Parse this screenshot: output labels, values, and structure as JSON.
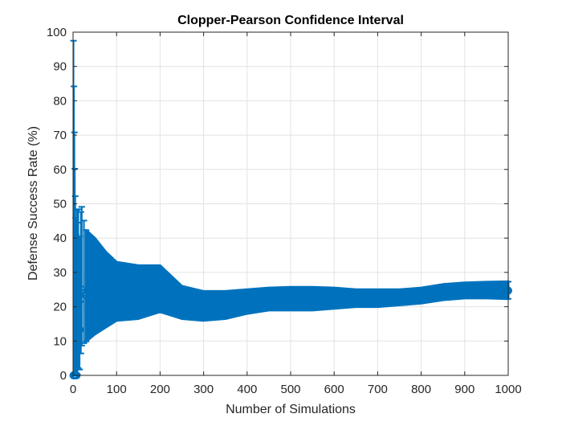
{
  "chart_data": {
    "type": "errorbar",
    "title": "Clopper-Pearson Confidence Interval",
    "xlabel": "Number of Simulations",
    "ylabel": "Defense Success Rate (%)",
    "xlim": [
      0,
      1000
    ],
    "ylim": [
      0,
      100
    ],
    "xticks": [
      0,
      100,
      200,
      300,
      400,
      500,
      600,
      700,
      800,
      900,
      1000
    ],
    "yticks": [
      0,
      10,
      20,
      30,
      40,
      50,
      60,
      70,
      80,
      90,
      100
    ],
    "grid": true,
    "box": true,
    "series_color": "#0072BD",
    "early_points": [
      {
        "n": 1,
        "rate": 0,
        "lower": 0,
        "upper": 97.5
      },
      {
        "n": 2,
        "rate": 0,
        "lower": 0,
        "upper": 84.2
      },
      {
        "n": 3,
        "rate": 0,
        "lower": 0,
        "upper": 70.8
      },
      {
        "n": 4,
        "rate": 0,
        "lower": 0,
        "upper": 60.2
      },
      {
        "n": 5,
        "rate": 0,
        "lower": 0,
        "upper": 52.2
      },
      {
        "n": 6,
        "rate": 0,
        "lower": 0,
        "upper": 45.9
      },
      {
        "n": 7,
        "rate": 0,
        "lower": 0,
        "upper": 41.0
      },
      {
        "n": 8,
        "rate": 0,
        "lower": 0,
        "upper": 36.9
      },
      {
        "n": 9,
        "rate": 11.1,
        "lower": 0.3,
        "upper": 48.2
      },
      {
        "n": 10,
        "rate": 10.0,
        "lower": 0.3,
        "upper": 44.5
      },
      {
        "n": 12,
        "rate": 16.7,
        "lower": 2.1,
        "upper": 48.4
      },
      {
        "n": 15,
        "rate": 13.3,
        "lower": 1.7,
        "upper": 40.5
      },
      {
        "n": 18,
        "rate": 22.2,
        "lower": 6.4,
        "upper": 47.6
      },
      {
        "n": 20,
        "rate": 25.0,
        "lower": 8.7,
        "upper": 49.1
      },
      {
        "n": 25,
        "rate": 24.0,
        "lower": 9.4,
        "upper": 45.1
      },
      {
        "n": 30,
        "rate": 23.3,
        "lower": 9.9,
        "upper": 42.3
      }
    ],
    "band": {
      "x": [
        30,
        50,
        75,
        100,
        150,
        200,
        250,
        300,
        350,
        400,
        450,
        500,
        550,
        600,
        650,
        700,
        750,
        800,
        850,
        900,
        950,
        1000
      ],
      "rate": [
        23.3,
        24,
        23,
        23,
        23,
        24.5,
        21.5,
        20,
        20,
        21,
        21.5,
        22,
        22,
        22,
        22,
        22.5,
        22.5,
        23,
        24,
        24.5,
        24.7,
        24.7
      ],
      "lower": [
        9.9,
        12,
        14,
        16,
        16.5,
        18.5,
        16.5,
        16,
        16.5,
        18,
        19,
        19,
        19,
        19.5,
        20,
        20,
        20.5,
        21,
        22,
        22.5,
        22.5,
        22.3
      ],
      "upper": [
        42.3,
        40,
        36,
        33,
        32,
        32,
        26,
        24.5,
        24.5,
        25,
        25.5,
        25.7,
        25.7,
        25.5,
        25,
        25,
        25,
        25.5,
        26.5,
        27,
        27.2,
        27.3
      ]
    },
    "last_point": {
      "n": 1000,
      "rate": 24.7,
      "lower": 22.3,
      "upper": 27.3
    }
  }
}
